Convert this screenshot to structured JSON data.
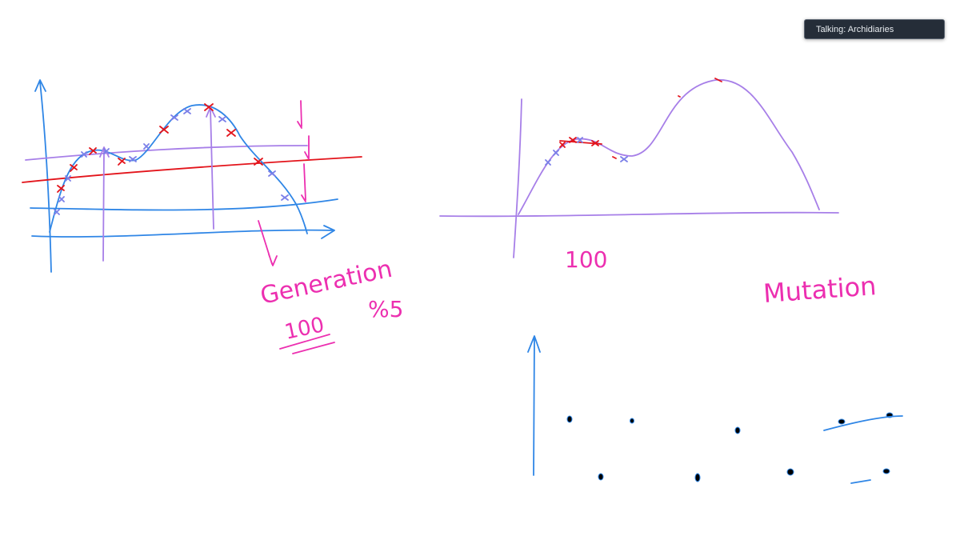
{
  "notification": {
    "text": "Talking: Archidiaries"
  },
  "colors": {
    "blue": "#2f86e6",
    "red": "#e3141b",
    "purple": "#a77fe8",
    "pink": "#ec2fb0",
    "toast_bg": "#252d38"
  },
  "annotations": {
    "generation": "Generation",
    "generation_value": "100",
    "percent": "%5",
    "left_value": "100",
    "mutation": "Mutation"
  }
}
